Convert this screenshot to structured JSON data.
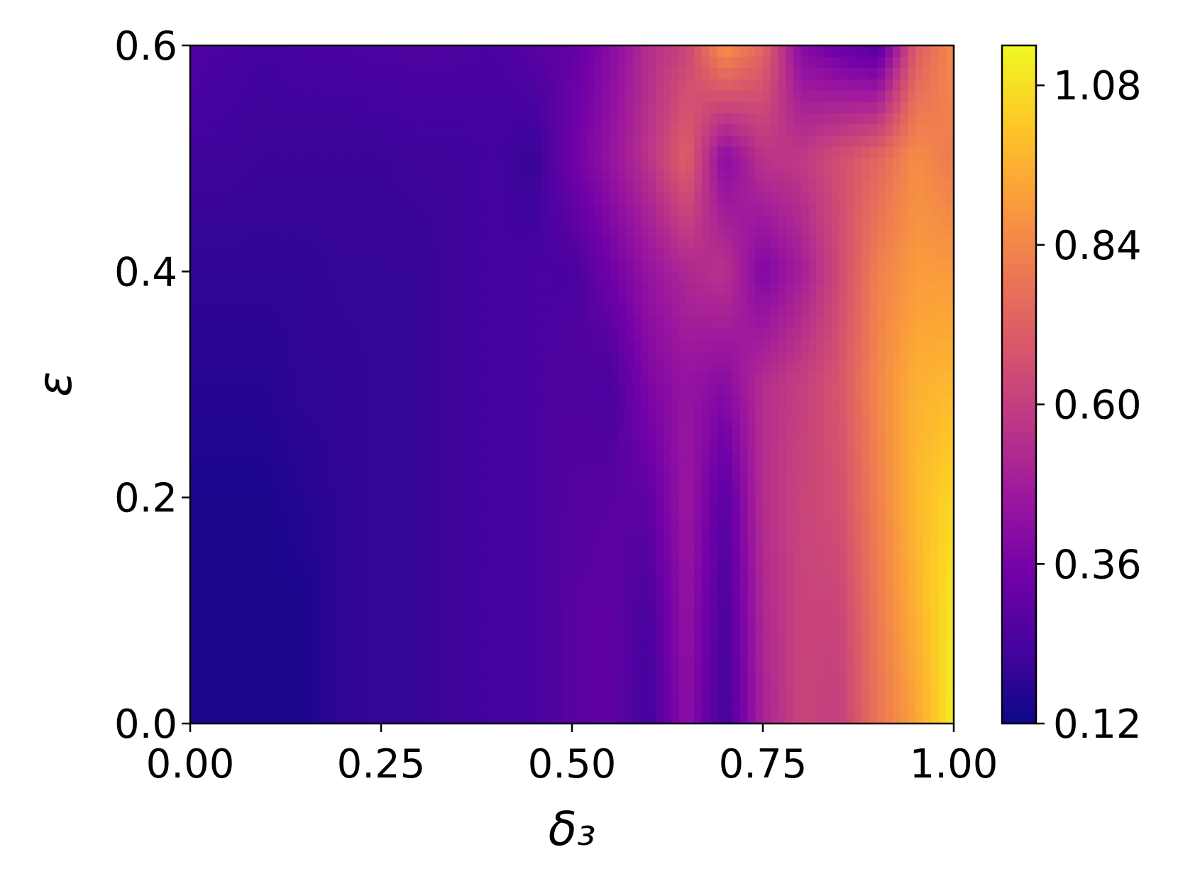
{
  "chart_data": {
    "type": "heatmap",
    "style": "filled contour",
    "colormap": "plasma",
    "xlabel": "δ₃",
    "ylabel": "ε",
    "xlim": [
      0.0,
      1.0
    ],
    "ylim": [
      0.0,
      0.6
    ],
    "x_ticks": [
      "0.00",
      "0.25",
      "0.50",
      "0.75",
      "1.00"
    ],
    "y_ticks": [
      "0.0",
      "0.2",
      "0.4",
      "0.6"
    ],
    "colorbar": {
      "range": [
        0.12,
        1.14
      ],
      "ticks": [
        "0.12",
        "0.36",
        "0.60",
        "0.84",
        "1.08"
      ],
      "colors": [
        "#0d0887",
        "#46039f",
        "#7201a8",
        "#9c179e",
        "#bd3786",
        "#d8576b",
        "#ed7953",
        "#fb9f3a",
        "#fdca26",
        "#f0f921"
      ]
    },
    "grid": false,
    "x": [
      0.0,
      0.05,
      0.1,
      0.15,
      0.2,
      0.25,
      0.3,
      0.35,
      0.4,
      0.45,
      0.5,
      0.55,
      0.6,
      0.65,
      0.7,
      0.75,
      0.8,
      0.85,
      0.9,
      0.95,
      1.0
    ],
    "y": [
      0.0,
      0.1,
      0.2,
      0.3,
      0.4,
      0.5,
      0.6
    ],
    "z": [
      [
        0.15,
        0.15,
        0.15,
        0.15,
        0.19,
        0.2,
        0.2,
        0.22,
        0.23,
        0.24,
        0.28,
        0.3,
        0.22,
        0.42,
        0.22,
        0.5,
        0.62,
        0.6,
        0.78,
        0.92,
        1.12
      ],
      [
        0.15,
        0.15,
        0.15,
        0.15,
        0.19,
        0.2,
        0.2,
        0.22,
        0.23,
        0.24,
        0.28,
        0.3,
        0.24,
        0.44,
        0.24,
        0.52,
        0.62,
        0.62,
        0.8,
        0.96,
        1.1
      ],
      [
        0.15,
        0.15,
        0.15,
        0.17,
        0.19,
        0.2,
        0.2,
        0.22,
        0.23,
        0.24,
        0.27,
        0.28,
        0.3,
        0.46,
        0.28,
        0.54,
        0.62,
        0.66,
        0.82,
        0.98,
        1.06
      ],
      [
        0.17,
        0.17,
        0.17,
        0.19,
        0.19,
        0.2,
        0.2,
        0.22,
        0.23,
        0.24,
        0.26,
        0.24,
        0.38,
        0.44,
        0.4,
        0.54,
        0.6,
        0.68,
        0.84,
        0.96,
        0.98
      ],
      [
        0.19,
        0.19,
        0.19,
        0.19,
        0.2,
        0.2,
        0.2,
        0.22,
        0.23,
        0.24,
        0.24,
        0.34,
        0.44,
        0.52,
        0.56,
        0.38,
        0.48,
        0.64,
        0.82,
        0.9,
        0.9
      ],
      [
        0.22,
        0.22,
        0.21,
        0.21,
        0.21,
        0.21,
        0.22,
        0.22,
        0.23,
        0.2,
        0.34,
        0.44,
        0.56,
        0.72,
        0.4,
        0.56,
        0.58,
        0.66,
        0.74,
        0.86,
        0.8
      ],
      [
        0.26,
        0.24,
        0.23,
        0.24,
        0.24,
        0.25,
        0.25,
        0.25,
        0.24,
        0.28,
        0.3,
        0.4,
        0.54,
        0.62,
        0.88,
        0.74,
        0.4,
        0.32,
        0.26,
        0.7,
        0.86
      ]
    ]
  }
}
